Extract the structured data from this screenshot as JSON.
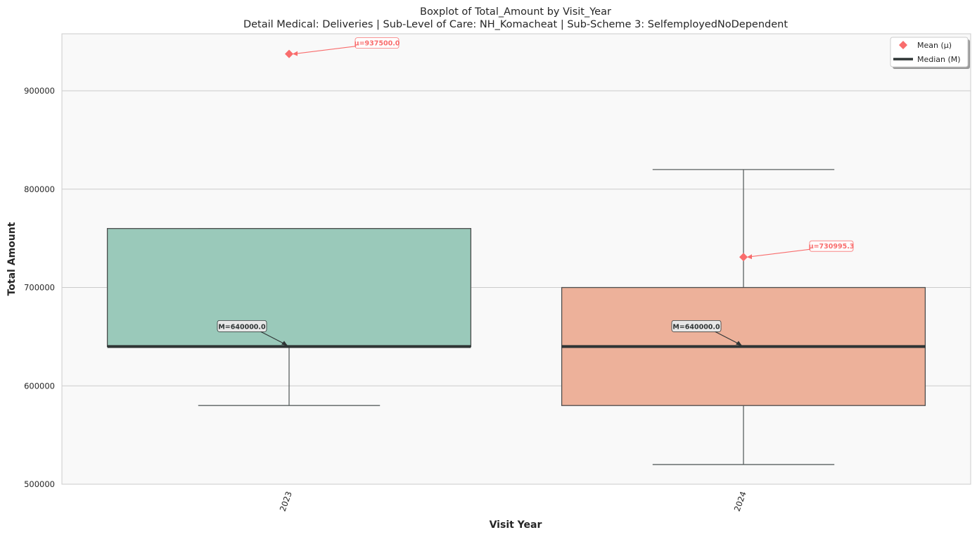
{
  "chart_data": {
    "type": "box",
    "title": "Boxplot of Total_Amount by Visit_Year",
    "subtitle": "Detail Medical: Deliveries | Sub-Level of Care: NH_Komacheat | Sub-Scheme 3: SelfemployedNoDependent",
    "xlabel": "Visit Year",
    "ylabel": "Total Amount",
    "ylim": [
      500000,
      958000
    ],
    "yticks": [
      500000,
      600000,
      700000,
      800000,
      900000
    ],
    "ytick_labels": [
      "500000",
      "600000",
      "700000",
      "800000",
      "900000"
    ],
    "grid": true,
    "legend_position": "top-right",
    "legend": [
      {
        "label": "Mean (μ)",
        "marker": "diamond",
        "color": "#f96d6d"
      },
      {
        "label": "Median (M)",
        "marker": "line",
        "color": "#2f3535"
      }
    ],
    "categories": [
      "2023",
      "2024"
    ],
    "boxes": [
      {
        "category": "2023",
        "whisker_low": 580000,
        "q1": 640000,
        "median": 640000,
        "q3": 760000,
        "whisker_high": 760000,
        "mean": 937500,
        "color": "#9ac9ba",
        "mean_label": "μ=937500.0",
        "median_label": "M=640000.0"
      },
      {
        "category": "2024",
        "whisker_low": 520000,
        "q1": 580000,
        "median": 640000,
        "q3": 700000,
        "whisker_high": 820000,
        "mean": 730995.3,
        "color": "#edb19a",
        "mean_label": "μ=730995.3",
        "median_label": "M=640000.0"
      }
    ]
  },
  "colors": {
    "plot_bg": "#f9f9f9",
    "grid": "#cccccc",
    "mean": "#f96d6d",
    "median": "#2f3535",
    "box_edge": "#4d4d4d",
    "whisker": "#5a6060"
  }
}
